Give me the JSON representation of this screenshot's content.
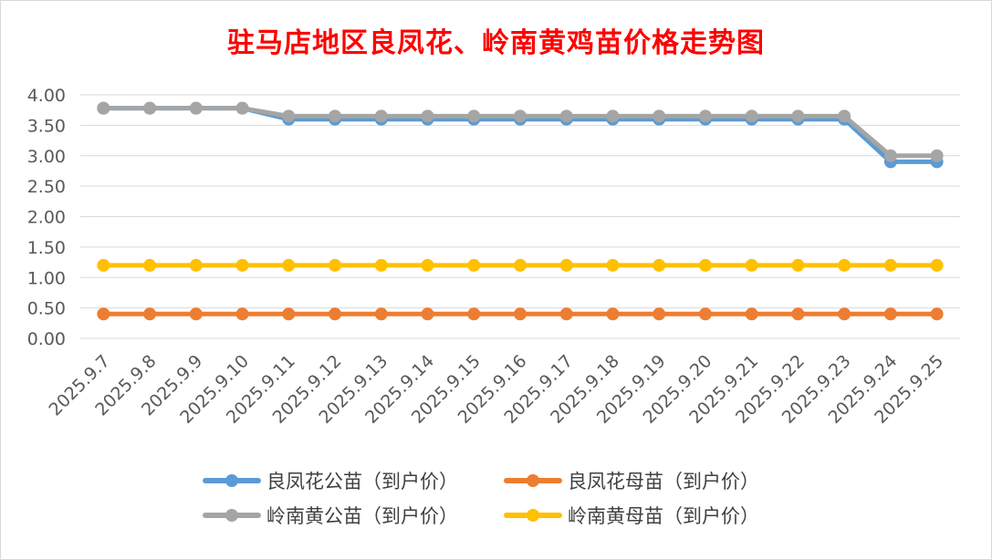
{
  "chart_data": {
    "type": "line",
    "title": "驻马店地区良凤花、岭南黄鸡苗价格走势图",
    "xlabel": "",
    "ylabel": "",
    "categories": [
      "2025.9.7",
      "2025.9.8",
      "2025.9.9",
      "2025.9.10",
      "2025.9.11",
      "2025.9.12",
      "2025.9.13",
      "2025.9.14",
      "2025.9.15",
      "2025.9.16",
      "2025.9.17",
      "2025.9.18",
      "2025.9.19",
      "2025.9.20",
      "2025.9.21",
      "2025.9.22",
      "2025.9.23",
      "2025.9.24",
      "2025.9.25"
    ],
    "yticks": [
      "0.00",
      "0.50",
      "1.00",
      "1.50",
      "2.00",
      "2.50",
      "3.00",
      "3.50",
      "4.00"
    ],
    "ylim": [
      0,
      4
    ],
    "grid": true,
    "legend_position": "bottom",
    "series": [
      {
        "name": "良凤花公苗（到户价）",
        "color": "#5b9bd5",
        "values": [
          3.78,
          3.78,
          3.78,
          3.78,
          3.6,
          3.6,
          3.6,
          3.6,
          3.6,
          3.6,
          3.6,
          3.6,
          3.6,
          3.6,
          3.6,
          3.6,
          3.6,
          2.9,
          2.9
        ]
      },
      {
        "name": "良凤花母苗（到户价）",
        "color": "#ed7d31",
        "values": [
          0.4,
          0.4,
          0.4,
          0.4,
          0.4,
          0.4,
          0.4,
          0.4,
          0.4,
          0.4,
          0.4,
          0.4,
          0.4,
          0.4,
          0.4,
          0.4,
          0.4,
          0.4,
          0.4
        ]
      },
      {
        "name": "岭南黄公苗（到户价）",
        "color": "#a5a5a5",
        "values": [
          3.78,
          3.78,
          3.78,
          3.78,
          3.65,
          3.65,
          3.65,
          3.65,
          3.65,
          3.65,
          3.65,
          3.65,
          3.65,
          3.65,
          3.65,
          3.65,
          3.65,
          3.0,
          3.0
        ]
      },
      {
        "name": "岭南黄母苗（到户价）",
        "color": "#ffc000",
        "values": [
          1.2,
          1.2,
          1.2,
          1.2,
          1.2,
          1.2,
          1.2,
          1.2,
          1.2,
          1.2,
          1.2,
          1.2,
          1.2,
          1.2,
          1.2,
          1.2,
          1.2,
          1.2,
          1.2
        ]
      }
    ]
  },
  "legend_order": [
    0,
    1,
    2,
    3
  ]
}
